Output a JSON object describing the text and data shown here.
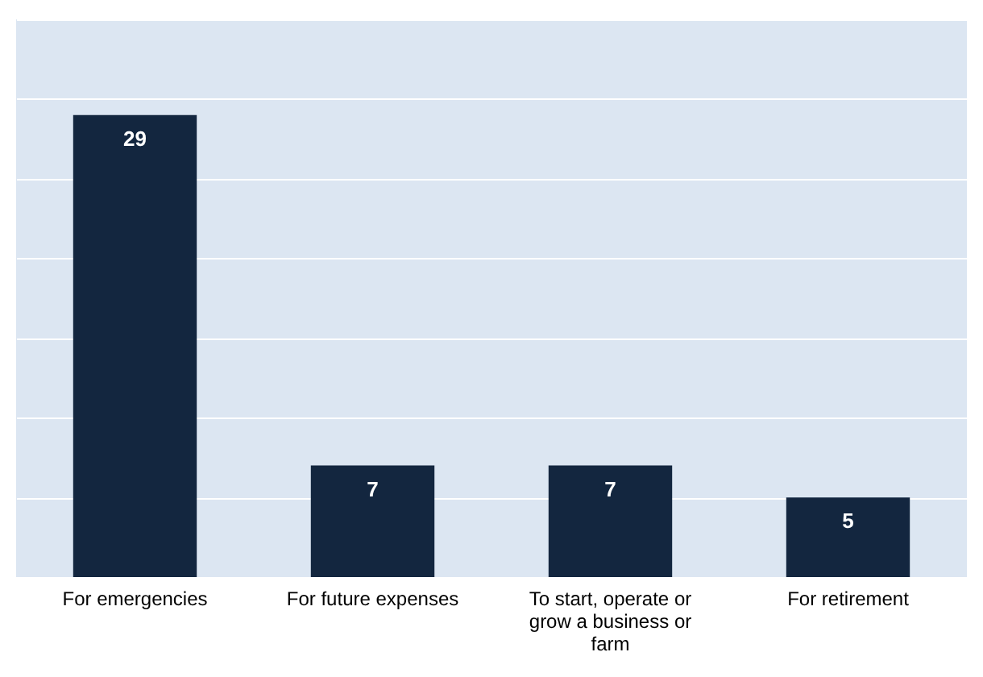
{
  "chart_data": {
    "type": "bar",
    "categories": [
      "For emergencies",
      "For future expenses",
      "To start, operate or grow a business or farm",
      "For retirement"
    ],
    "values": [
      29,
      7,
      7,
      5
    ],
    "color": "#13263f",
    "ylim": [
      0,
      35
    ],
    "yticks": [
      {
        "value": 0,
        "label": null
      },
      {
        "value": 5,
        "label": null
      },
      {
        "value": 10,
        "label": null
      },
      {
        "value": 15,
        "label": null
      },
      {
        "value": 20,
        "label": null
      },
      {
        "value": 25,
        "label": null
      },
      {
        "value": 30,
        "label": null
      },
      {
        "value": 35,
        "label": null
      }
    ],
    "tick_labels": "x",
    "grid": "y",
    "data_labels": true
  }
}
